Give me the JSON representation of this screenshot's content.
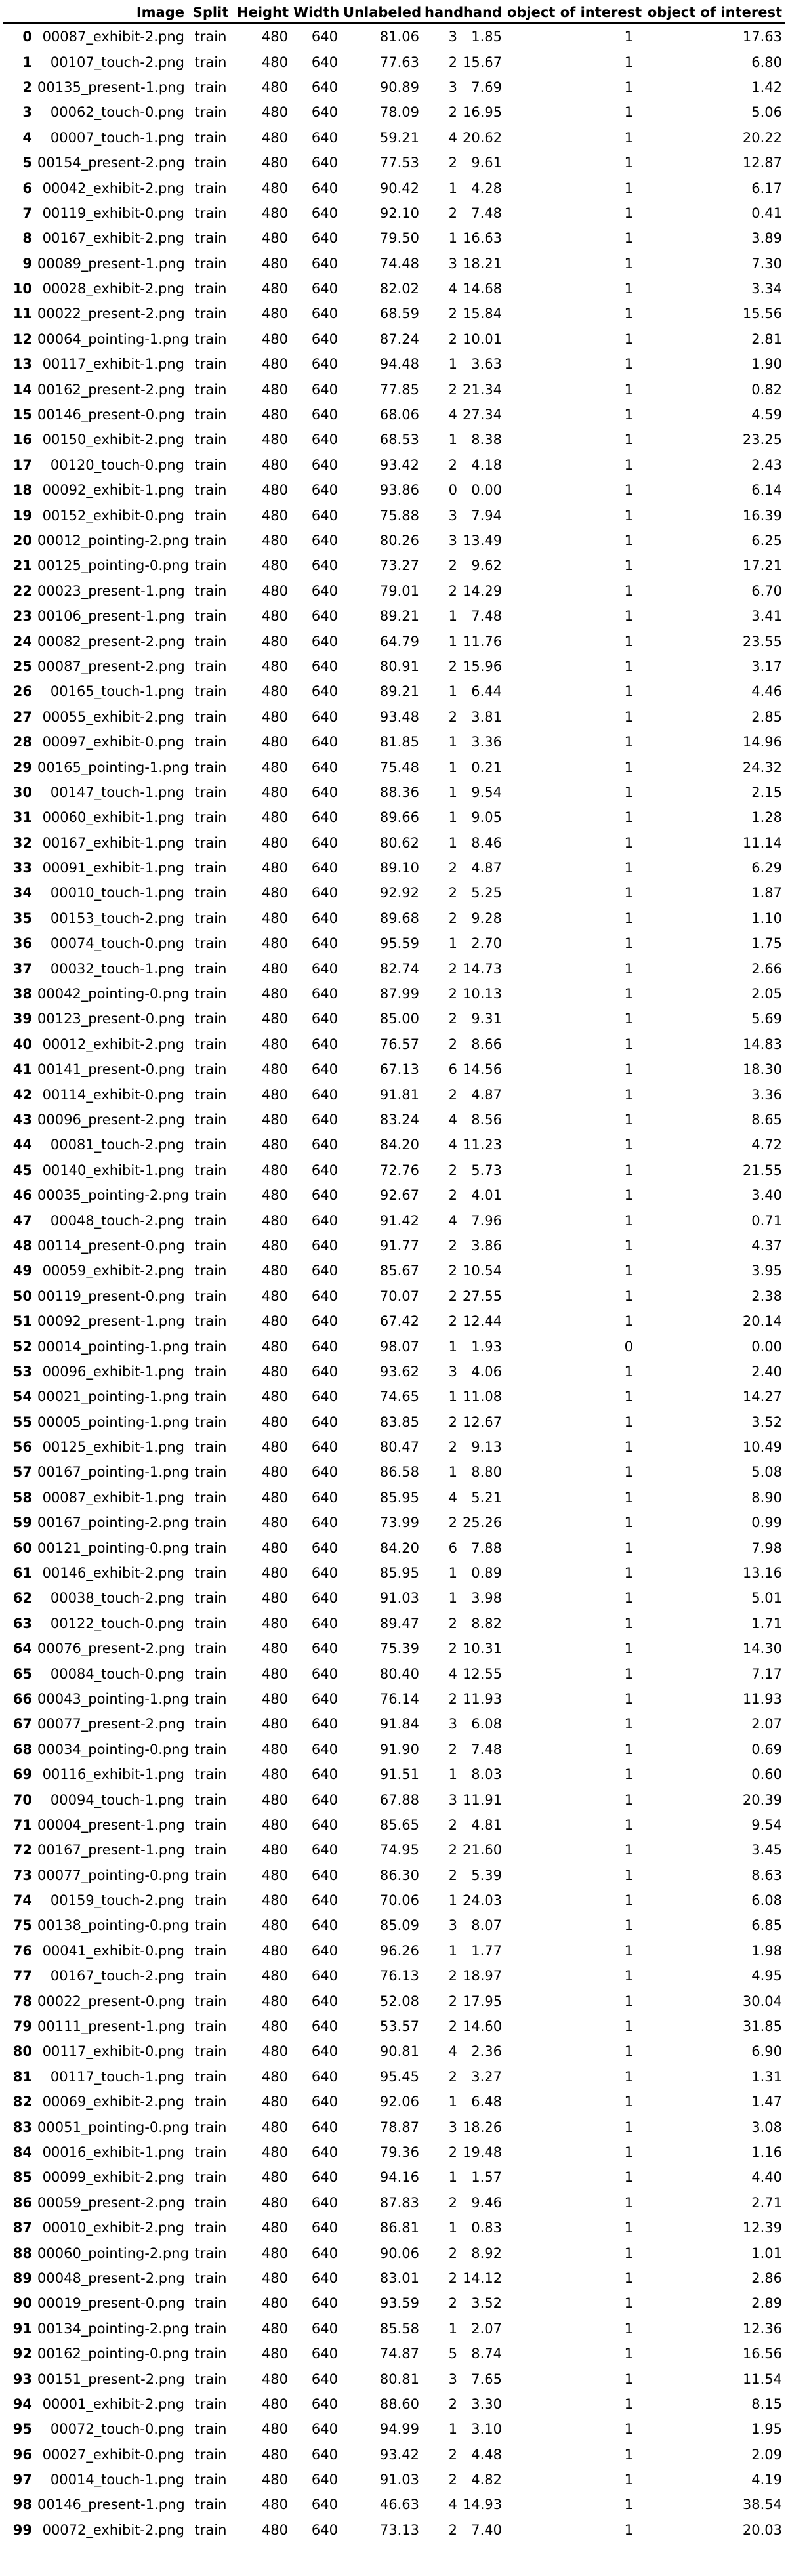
{
  "table": {
    "columns": [
      "",
      "Image",
      "Split",
      "Height",
      "Width",
      "Unlabeled",
      "hand",
      "hand",
      "object of interest",
      "object of interest"
    ],
    "rows": [
      [
        "0",
        "00087_exhibit-2.png",
        "train",
        "480",
        "640",
        "81.06",
        "3",
        "1.85",
        "1",
        "17.63"
      ],
      [
        "1",
        "00107_touch-2.png",
        "train",
        "480",
        "640",
        "77.63",
        "2",
        "15.67",
        "1",
        "6.80"
      ],
      [
        "2",
        "00135_present-1.png",
        "train",
        "480",
        "640",
        "90.89",
        "3",
        "7.69",
        "1",
        "1.42"
      ],
      [
        "3",
        "00062_touch-0.png",
        "train",
        "480",
        "640",
        "78.09",
        "2",
        "16.95",
        "1",
        "5.06"
      ],
      [
        "4",
        "00007_touch-1.png",
        "train",
        "480",
        "640",
        "59.21",
        "4",
        "20.62",
        "1",
        "20.22"
      ],
      [
        "5",
        "00154_present-2.png",
        "train",
        "480",
        "640",
        "77.53",
        "2",
        "9.61",
        "1",
        "12.87"
      ],
      [
        "6",
        "00042_exhibit-2.png",
        "train",
        "480",
        "640",
        "90.42",
        "1",
        "4.28",
        "1",
        "6.17"
      ],
      [
        "7",
        "00119_exhibit-0.png",
        "train",
        "480",
        "640",
        "92.10",
        "2",
        "7.48",
        "1",
        "0.41"
      ],
      [
        "8",
        "00167_exhibit-2.png",
        "train",
        "480",
        "640",
        "79.50",
        "1",
        "16.63",
        "1",
        "3.89"
      ],
      [
        "9",
        "00089_present-1.png",
        "train",
        "480",
        "640",
        "74.48",
        "3",
        "18.21",
        "1",
        "7.30"
      ],
      [
        "10",
        "00028_exhibit-2.png",
        "train",
        "480",
        "640",
        "82.02",
        "4",
        "14.68",
        "1",
        "3.34"
      ],
      [
        "11",
        "00022_present-2.png",
        "train",
        "480",
        "640",
        "68.59",
        "2",
        "15.84",
        "1",
        "15.56"
      ],
      [
        "12",
        "00064_pointing-1.png",
        "train",
        "480",
        "640",
        "87.24",
        "2",
        "10.01",
        "1",
        "2.81"
      ],
      [
        "13",
        "00117_exhibit-1.png",
        "train",
        "480",
        "640",
        "94.48",
        "1",
        "3.63",
        "1",
        "1.90"
      ],
      [
        "14",
        "00162_present-2.png",
        "train",
        "480",
        "640",
        "77.85",
        "2",
        "21.34",
        "1",
        "0.82"
      ],
      [
        "15",
        "00146_present-0.png",
        "train",
        "480",
        "640",
        "68.06",
        "4",
        "27.34",
        "1",
        "4.59"
      ],
      [
        "16",
        "00150_exhibit-2.png",
        "train",
        "480",
        "640",
        "68.53",
        "1",
        "8.38",
        "1",
        "23.25"
      ],
      [
        "17",
        "00120_touch-0.png",
        "train",
        "480",
        "640",
        "93.42",
        "2",
        "4.18",
        "1",
        "2.43"
      ],
      [
        "18",
        "00092_exhibit-1.png",
        "train",
        "480",
        "640",
        "93.86",
        "0",
        "0.00",
        "1",
        "6.14"
      ],
      [
        "19",
        "00152_exhibit-0.png",
        "train",
        "480",
        "640",
        "75.88",
        "3",
        "7.94",
        "1",
        "16.39"
      ],
      [
        "20",
        "00012_pointing-2.png",
        "train",
        "480",
        "640",
        "80.26",
        "3",
        "13.49",
        "1",
        "6.25"
      ],
      [
        "21",
        "00125_pointing-0.png",
        "train",
        "480",
        "640",
        "73.27",
        "2",
        "9.62",
        "1",
        "17.21"
      ],
      [
        "22",
        "00023_present-1.png",
        "train",
        "480",
        "640",
        "79.01",
        "2",
        "14.29",
        "1",
        "6.70"
      ],
      [
        "23",
        "00106_present-1.png",
        "train",
        "480",
        "640",
        "89.21",
        "1",
        "7.48",
        "1",
        "3.41"
      ],
      [
        "24",
        "00082_present-2.png",
        "train",
        "480",
        "640",
        "64.79",
        "1",
        "11.76",
        "1",
        "23.55"
      ],
      [
        "25",
        "00087_present-2.png",
        "train",
        "480",
        "640",
        "80.91",
        "2",
        "15.96",
        "1",
        "3.17"
      ],
      [
        "26",
        "00165_touch-1.png",
        "train",
        "480",
        "640",
        "89.21",
        "1",
        "6.44",
        "1",
        "4.46"
      ],
      [
        "27",
        "00055_exhibit-2.png",
        "train",
        "480",
        "640",
        "93.48",
        "2",
        "3.81",
        "1",
        "2.85"
      ],
      [
        "28",
        "00097_exhibit-0.png",
        "train",
        "480",
        "640",
        "81.85",
        "1",
        "3.36",
        "1",
        "14.96"
      ],
      [
        "29",
        "00165_pointing-1.png",
        "train",
        "480",
        "640",
        "75.48",
        "1",
        "0.21",
        "1",
        "24.32"
      ],
      [
        "30",
        "00147_touch-1.png",
        "train",
        "480",
        "640",
        "88.36",
        "1",
        "9.54",
        "1",
        "2.15"
      ],
      [
        "31",
        "00060_exhibit-1.png",
        "train",
        "480",
        "640",
        "89.66",
        "1",
        "9.05",
        "1",
        "1.28"
      ],
      [
        "32",
        "00167_exhibit-1.png",
        "train",
        "480",
        "640",
        "80.62",
        "1",
        "8.46",
        "1",
        "11.14"
      ],
      [
        "33",
        "00091_exhibit-1.png",
        "train",
        "480",
        "640",
        "89.10",
        "2",
        "4.87",
        "1",
        "6.29"
      ],
      [
        "34",
        "00010_touch-1.png",
        "train",
        "480",
        "640",
        "92.92",
        "2",
        "5.25",
        "1",
        "1.87"
      ],
      [
        "35",
        "00153_touch-2.png",
        "train",
        "480",
        "640",
        "89.68",
        "2",
        "9.28",
        "1",
        "1.10"
      ],
      [
        "36",
        "00074_touch-0.png",
        "train",
        "480",
        "640",
        "95.59",
        "1",
        "2.70",
        "1",
        "1.75"
      ],
      [
        "37",
        "00032_touch-1.png",
        "train",
        "480",
        "640",
        "82.74",
        "2",
        "14.73",
        "1",
        "2.66"
      ],
      [
        "38",
        "00042_pointing-0.png",
        "train",
        "480",
        "640",
        "87.99",
        "2",
        "10.13",
        "1",
        "2.05"
      ],
      [
        "39",
        "00123_present-0.png",
        "train",
        "480",
        "640",
        "85.00",
        "2",
        "9.31",
        "1",
        "5.69"
      ],
      [
        "40",
        "00012_exhibit-2.png",
        "train",
        "480",
        "640",
        "76.57",
        "2",
        "8.66",
        "1",
        "14.83"
      ],
      [
        "41",
        "00141_present-0.png",
        "train",
        "480",
        "640",
        "67.13",
        "6",
        "14.56",
        "1",
        "18.30"
      ],
      [
        "42",
        "00114_exhibit-0.png",
        "train",
        "480",
        "640",
        "91.81",
        "2",
        "4.87",
        "1",
        "3.36"
      ],
      [
        "43",
        "00096_present-2.png",
        "train",
        "480",
        "640",
        "83.24",
        "4",
        "8.56",
        "1",
        "8.65"
      ],
      [
        "44",
        "00081_touch-2.png",
        "train",
        "480",
        "640",
        "84.20",
        "4",
        "11.23",
        "1",
        "4.72"
      ],
      [
        "45",
        "00140_exhibit-1.png",
        "train",
        "480",
        "640",
        "72.76",
        "2",
        "5.73",
        "1",
        "21.55"
      ],
      [
        "46",
        "00035_pointing-2.png",
        "train",
        "480",
        "640",
        "92.67",
        "2",
        "4.01",
        "1",
        "3.40"
      ],
      [
        "47",
        "00048_touch-2.png",
        "train",
        "480",
        "640",
        "91.42",
        "4",
        "7.96",
        "1",
        "0.71"
      ],
      [
        "48",
        "00114_present-0.png",
        "train",
        "480",
        "640",
        "91.77",
        "2",
        "3.86",
        "1",
        "4.37"
      ],
      [
        "49",
        "00059_exhibit-2.png",
        "train",
        "480",
        "640",
        "85.67",
        "2",
        "10.54",
        "1",
        "3.95"
      ],
      [
        "50",
        "00119_present-0.png",
        "train",
        "480",
        "640",
        "70.07",
        "2",
        "27.55",
        "1",
        "2.38"
      ],
      [
        "51",
        "00092_present-1.png",
        "train",
        "480",
        "640",
        "67.42",
        "2",
        "12.44",
        "1",
        "20.14"
      ],
      [
        "52",
        "00014_pointing-1.png",
        "train",
        "480",
        "640",
        "98.07",
        "1",
        "1.93",
        "0",
        "0.00"
      ],
      [
        "53",
        "00096_exhibit-1.png",
        "train",
        "480",
        "640",
        "93.62",
        "3",
        "4.06",
        "1",
        "2.40"
      ],
      [
        "54",
        "00021_pointing-1.png",
        "train",
        "480",
        "640",
        "74.65",
        "1",
        "11.08",
        "1",
        "14.27"
      ],
      [
        "55",
        "00005_pointing-1.png",
        "train",
        "480",
        "640",
        "83.85",
        "2",
        "12.67",
        "1",
        "3.52"
      ],
      [
        "56",
        "00125_exhibit-1.png",
        "train",
        "480",
        "640",
        "80.47",
        "2",
        "9.13",
        "1",
        "10.49"
      ],
      [
        "57",
        "00167_pointing-1.png",
        "train",
        "480",
        "640",
        "86.58",
        "1",
        "8.80",
        "1",
        "5.08"
      ],
      [
        "58",
        "00087_exhibit-1.png",
        "train",
        "480",
        "640",
        "85.95",
        "4",
        "5.21",
        "1",
        "8.90"
      ],
      [
        "59",
        "00167_pointing-2.png",
        "train",
        "480",
        "640",
        "73.99",
        "2",
        "25.26",
        "1",
        "0.99"
      ],
      [
        "60",
        "00121_pointing-0.png",
        "train",
        "480",
        "640",
        "84.20",
        "6",
        "7.88",
        "1",
        "7.98"
      ],
      [
        "61",
        "00146_exhibit-2.png",
        "train",
        "480",
        "640",
        "85.95",
        "1",
        "0.89",
        "1",
        "13.16"
      ],
      [
        "62",
        "00038_touch-2.png",
        "train",
        "480",
        "640",
        "91.03",
        "1",
        "3.98",
        "1",
        "5.01"
      ],
      [
        "63",
        "00122_touch-0.png",
        "train",
        "480",
        "640",
        "89.47",
        "2",
        "8.82",
        "1",
        "1.71"
      ],
      [
        "64",
        "00076_present-2.png",
        "train",
        "480",
        "640",
        "75.39",
        "2",
        "10.31",
        "1",
        "14.30"
      ],
      [
        "65",
        "00084_touch-0.png",
        "train",
        "480",
        "640",
        "80.40",
        "4",
        "12.55",
        "1",
        "7.17"
      ],
      [
        "66",
        "00043_pointing-1.png",
        "train",
        "480",
        "640",
        "76.14",
        "2",
        "11.93",
        "1",
        "11.93"
      ],
      [
        "67",
        "00077_present-2.png",
        "train",
        "480",
        "640",
        "91.84",
        "3",
        "6.08",
        "1",
        "2.07"
      ],
      [
        "68",
        "00034_pointing-0.png",
        "train",
        "480",
        "640",
        "91.90",
        "2",
        "7.48",
        "1",
        "0.69"
      ],
      [
        "69",
        "00116_exhibit-1.png",
        "train",
        "480",
        "640",
        "91.51",
        "1",
        "8.03",
        "1",
        "0.60"
      ],
      [
        "70",
        "00094_touch-1.png",
        "train",
        "480",
        "640",
        "67.88",
        "3",
        "11.91",
        "1",
        "20.39"
      ],
      [
        "71",
        "00004_present-1.png",
        "train",
        "480",
        "640",
        "85.65",
        "2",
        "4.81",
        "1",
        "9.54"
      ],
      [
        "72",
        "00167_present-1.png",
        "train",
        "480",
        "640",
        "74.95",
        "2",
        "21.60",
        "1",
        "3.45"
      ],
      [
        "73",
        "00077_pointing-0.png",
        "train",
        "480",
        "640",
        "86.30",
        "2",
        "5.39",
        "1",
        "8.63"
      ],
      [
        "74",
        "00159_touch-2.png",
        "train",
        "480",
        "640",
        "70.06",
        "1",
        "24.03",
        "1",
        "6.08"
      ],
      [
        "75",
        "00138_pointing-0.png",
        "train",
        "480",
        "640",
        "85.09",
        "3",
        "8.07",
        "1",
        "6.85"
      ],
      [
        "76",
        "00041_exhibit-0.png",
        "train",
        "480",
        "640",
        "96.26",
        "1",
        "1.77",
        "1",
        "1.98"
      ],
      [
        "77",
        "00167_touch-2.png",
        "train",
        "480",
        "640",
        "76.13",
        "2",
        "18.97",
        "1",
        "4.95"
      ],
      [
        "78",
        "00022_present-0.png",
        "train",
        "480",
        "640",
        "52.08",
        "2",
        "17.95",
        "1",
        "30.04"
      ],
      [
        "79",
        "00111_present-1.png",
        "train",
        "480",
        "640",
        "53.57",
        "2",
        "14.60",
        "1",
        "31.85"
      ],
      [
        "80",
        "00117_exhibit-0.png",
        "train",
        "480",
        "640",
        "90.81",
        "4",
        "2.36",
        "1",
        "6.90"
      ],
      [
        "81",
        "00117_touch-1.png",
        "train",
        "480",
        "640",
        "95.45",
        "2",
        "3.27",
        "1",
        "1.31"
      ],
      [
        "82",
        "00069_exhibit-2.png",
        "train",
        "480",
        "640",
        "92.06",
        "1",
        "6.48",
        "1",
        "1.47"
      ],
      [
        "83",
        "00051_pointing-0.png",
        "train",
        "480",
        "640",
        "78.87",
        "3",
        "18.26",
        "1",
        "3.08"
      ],
      [
        "84",
        "00016_exhibit-1.png",
        "train",
        "480",
        "640",
        "79.36",
        "2",
        "19.48",
        "1",
        "1.16"
      ],
      [
        "85",
        "00099_exhibit-2.png",
        "train",
        "480",
        "640",
        "94.16",
        "1",
        "1.57",
        "1",
        "4.40"
      ],
      [
        "86",
        "00059_present-2.png",
        "train",
        "480",
        "640",
        "87.83",
        "2",
        "9.46",
        "1",
        "2.71"
      ],
      [
        "87",
        "00010_exhibit-2.png",
        "train",
        "480",
        "640",
        "86.81",
        "1",
        "0.83",
        "1",
        "12.39"
      ],
      [
        "88",
        "00060_pointing-2.png",
        "train",
        "480",
        "640",
        "90.06",
        "2",
        "8.92",
        "1",
        "1.01"
      ],
      [
        "89",
        "00048_present-2.png",
        "train",
        "480",
        "640",
        "83.01",
        "2",
        "14.12",
        "1",
        "2.86"
      ],
      [
        "90",
        "00019_present-0.png",
        "train",
        "480",
        "640",
        "93.59",
        "2",
        "3.52",
        "1",
        "2.89"
      ],
      [
        "91",
        "00134_pointing-2.png",
        "train",
        "480",
        "640",
        "85.58",
        "1",
        "2.07",
        "1",
        "12.36"
      ],
      [
        "92",
        "00162_pointing-0.png",
        "train",
        "480",
        "640",
        "74.87",
        "5",
        "8.74",
        "1",
        "16.56"
      ],
      [
        "93",
        "00151_present-2.png",
        "train",
        "480",
        "640",
        "80.81",
        "3",
        "7.65",
        "1",
        "11.54"
      ],
      [
        "94",
        "00001_exhibit-2.png",
        "train",
        "480",
        "640",
        "88.60",
        "2",
        "3.30",
        "1",
        "8.15"
      ],
      [
        "95",
        "00072_touch-0.png",
        "train",
        "480",
        "640",
        "94.99",
        "1",
        "3.10",
        "1",
        "1.95"
      ],
      [
        "96",
        "00027_exhibit-0.png",
        "train",
        "480",
        "640",
        "93.42",
        "2",
        "4.48",
        "1",
        "2.09"
      ],
      [
        "97",
        "00014_touch-1.png",
        "train",
        "480",
        "640",
        "91.03",
        "2",
        "4.82",
        "1",
        "4.19"
      ],
      [
        "98",
        "00146_present-1.png",
        "train",
        "480",
        "640",
        "46.63",
        "4",
        "14.93",
        "1",
        "38.54"
      ],
      [
        "99",
        "00072_exhibit-2.png",
        "train",
        "480",
        "640",
        "73.13",
        "2",
        "7.40",
        "1",
        "20.03"
      ]
    ]
  }
}
